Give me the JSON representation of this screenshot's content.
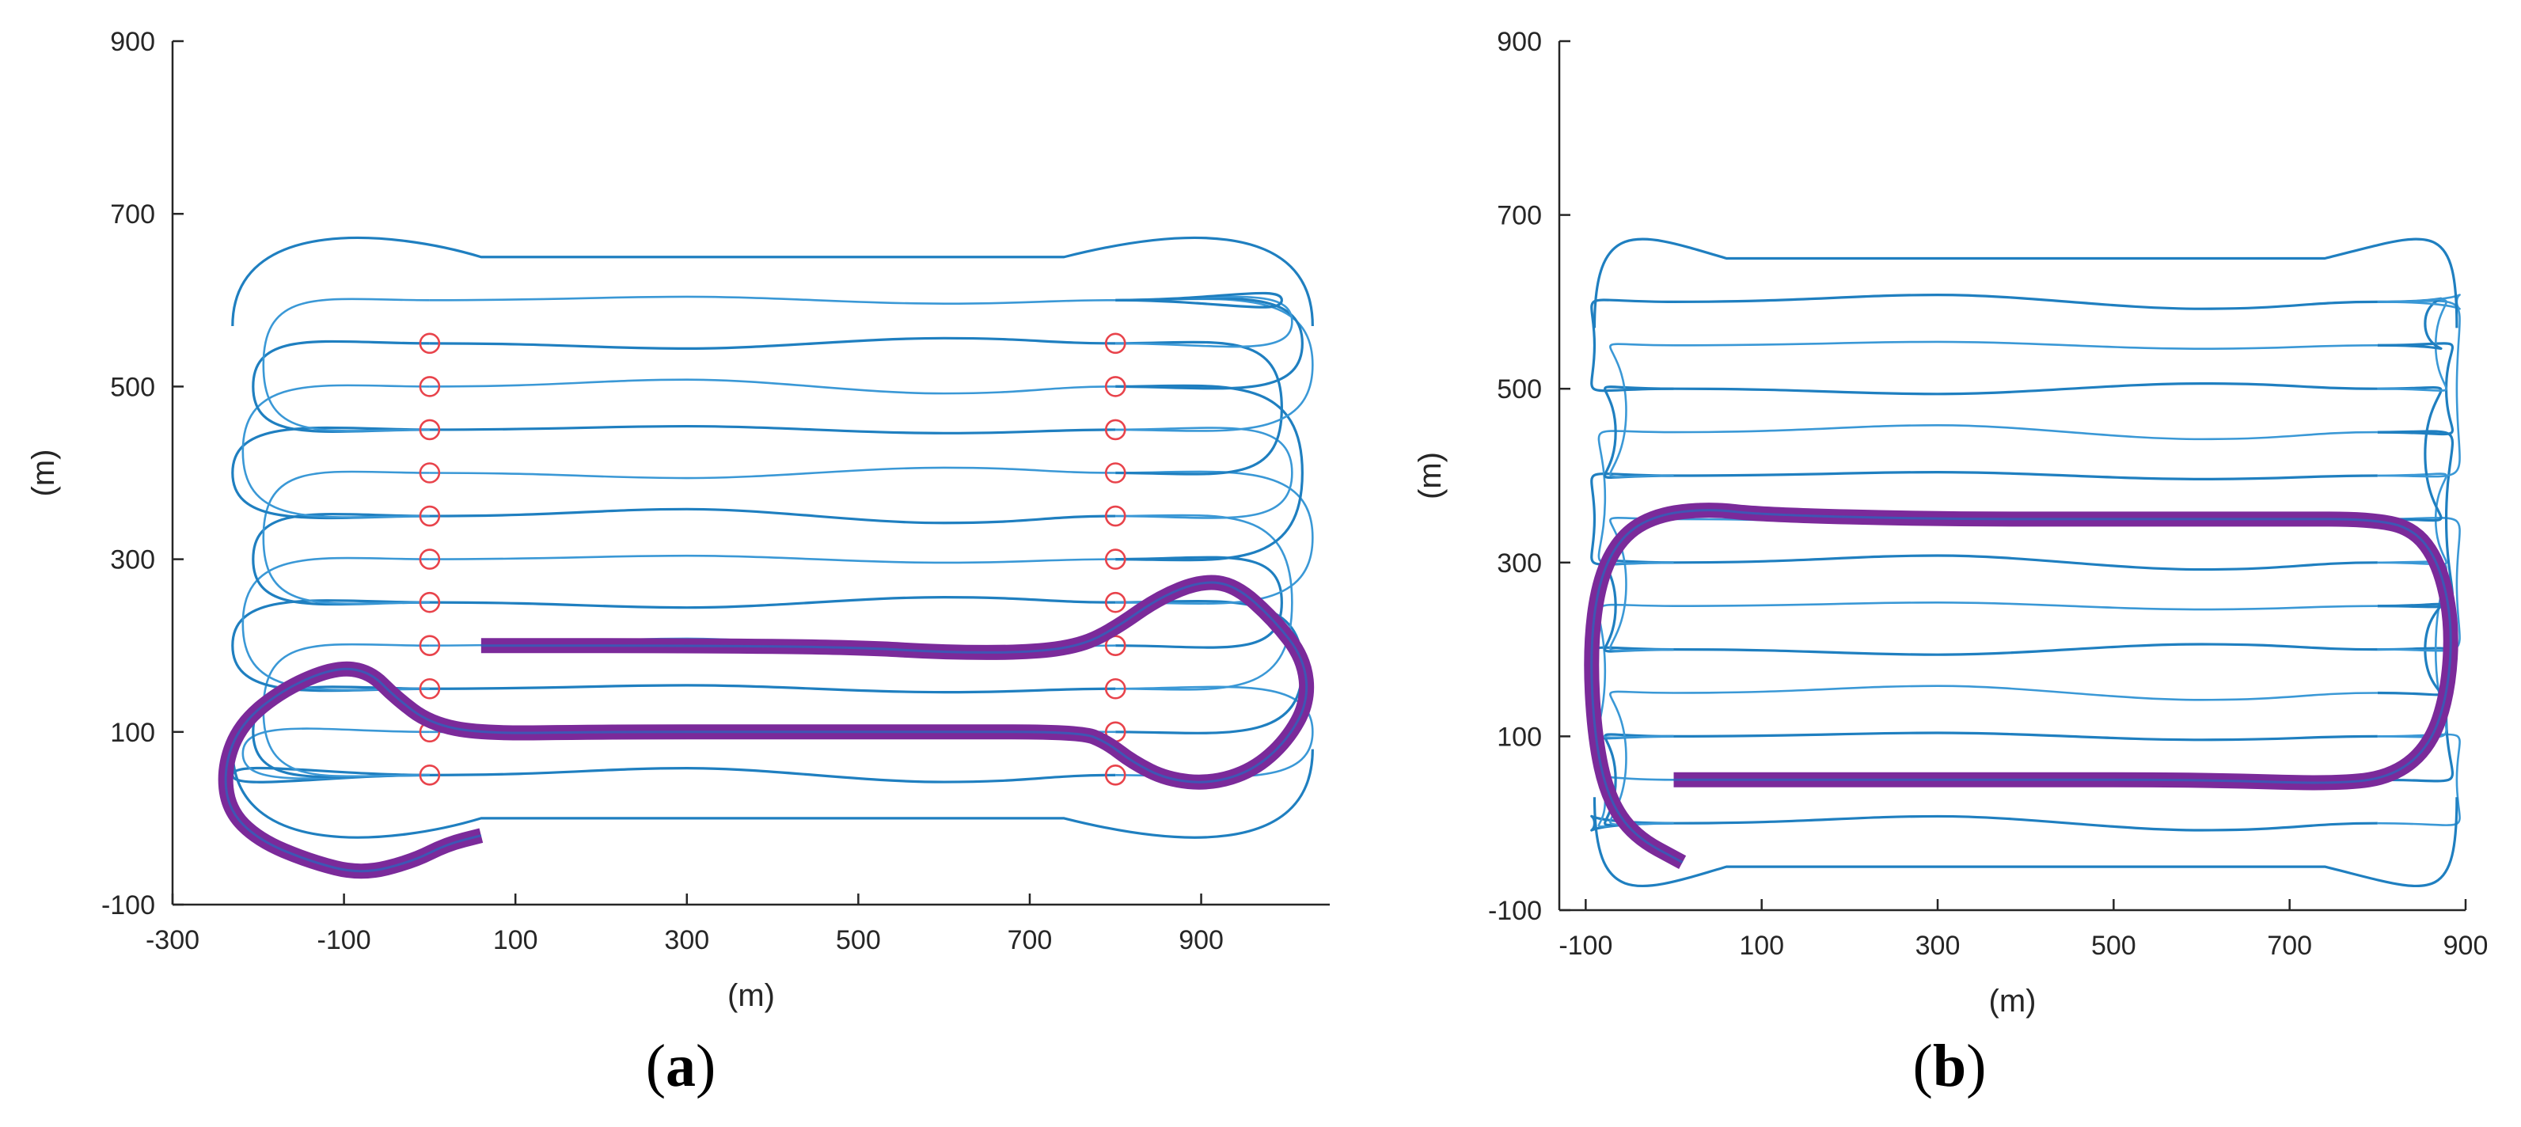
{
  "figure": {
    "panels": [
      {
        "id": "a",
        "label": "a"
      },
      {
        "id": "b",
        "label": "b"
      }
    ]
  },
  "chart_data": [
    {
      "panel": "a",
      "type": "line",
      "title": "",
      "xlabel": "(m)",
      "ylabel": "(m)",
      "xlim": [
        -300,
        1050
      ],
      "ylim": [
        -100,
        900
      ],
      "xticks": [
        -300,
        -100,
        100,
        300,
        500,
        700,
        900
      ],
      "yticks": [
        -100,
        100,
        300,
        500,
        700,
        900
      ],
      "lanes": [
        50,
        100,
        150,
        200,
        250,
        300,
        350,
        400,
        450,
        500,
        550,
        600
      ],
      "survey_band": [
        0,
        800
      ],
      "turn_extent": {
        "left": -230,
        "right": 1030
      },
      "waypoints": {
        "left_x": 0,
        "right_x": 800,
        "y": [
          50,
          100,
          150,
          200,
          250,
          300,
          350,
          400,
          450,
          500,
          550
        ]
      },
      "highlight_path": [
        [
          60,
          -20
        ],
        [
          20,
          -30
        ],
        [
          -20,
          -50
        ],
        [
          -80,
          -65
        ],
        [
          -140,
          -50
        ],
        [
          -200,
          -25
        ],
        [
          -235,
          10
        ],
        [
          -240,
          60
        ],
        [
          -220,
          110
        ],
        [
          -170,
          150
        ],
        [
          -110,
          175
        ],
        [
          -70,
          170
        ],
        [
          -40,
          140
        ],
        [
          0,
          110
        ],
        [
          60,
          98
        ],
        [
          200,
          100
        ],
        [
          400,
          100
        ],
        [
          600,
          100
        ],
        [
          760,
          100
        ],
        [
          790,
          88
        ],
        [
          820,
          65
        ],
        [
          860,
          45
        ],
        [
          910,
          40
        ],
        [
          960,
          55
        ],
        [
          1000,
          90
        ],
        [
          1025,
          135
        ],
        [
          1020,
          185
        ],
        [
          985,
          230
        ],
        [
          940,
          270
        ],
        [
          900,
          275
        ],
        [
          850,
          255
        ],
        [
          800,
          220
        ],
        [
          760,
          200
        ],
        [
          700,
          192
        ],
        [
          600,
          192
        ],
        [
          500,
          198
        ],
        [
          300,
          200
        ],
        [
          60,
          200
        ]
      ]
    },
    {
      "panel": "b",
      "type": "line",
      "title": "",
      "xlabel": "(m)",
      "ylabel": "(m)",
      "xlim": [
        -130,
        900
      ],
      "ylim": [
        -100,
        900
      ],
      "xticks": [
        -100,
        100,
        300,
        500,
        700,
        900
      ],
      "yticks": [
        -100,
        100,
        300,
        500,
        700,
        900
      ],
      "lanes": [
        0,
        50,
        100,
        150,
        200,
        250,
        300,
        350,
        400,
        450,
        500,
        550,
        600
      ],
      "survey_band": [
        0,
        800
      ],
      "turn_extent": {
        "left": -90,
        "right": 890
      },
      "highlight_path": [
        [
          0,
          50
        ],
        [
          200,
          50
        ],
        [
          400,
          50
        ],
        [
          600,
          50
        ],
        [
          760,
          45
        ],
        [
          820,
          55
        ],
        [
          860,
          90
        ],
        [
          880,
          150
        ],
        [
          885,
          230
        ],
        [
          870,
          300
        ],
        [
          840,
          340
        ],
        [
          790,
          350
        ],
        [
          700,
          350
        ],
        [
          500,
          350
        ],
        [
          300,
          350
        ],
        [
          100,
          355
        ],
        [
          40,
          362
        ],
        [
          -20,
          355
        ],
        [
          -60,
          330
        ],
        [
          -85,
          280
        ],
        [
          -95,
          200
        ],
        [
          -90,
          100
        ],
        [
          -75,
          30
        ],
        [
          -45,
          -15
        ],
        [
          10,
          -45
        ]
      ]
    }
  ]
}
